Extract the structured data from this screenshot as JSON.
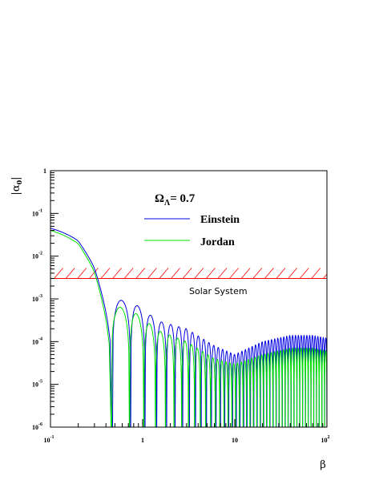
{
  "chart_data": {
    "type": "line",
    "ylabel_main": "|α",
    "ylabel_sub": "0",
    "ylabel_end": "|",
    "xlabel": "β",
    "x_scale": "log",
    "y_scale": "log",
    "xlim": [
      0.1,
      100
    ],
    "ylim": [
      1e-06,
      1
    ],
    "x_ticks": [
      {
        "value": 0.1,
        "base": "10",
        "exp": "-1"
      },
      {
        "value": 1,
        "base": "1",
        "exp": ""
      },
      {
        "value": 10,
        "base": "10",
        "exp": ""
      },
      {
        "value": 100,
        "base": "10",
        "exp": "2"
      }
    ],
    "y_ticks": [
      {
        "value": 1,
        "base": "1",
        "exp": ""
      },
      {
        "value": 0.1,
        "base": "10",
        "exp": "-1"
      },
      {
        "value": 0.01,
        "base": "10",
        "exp": "-2"
      },
      {
        "value": 0.001,
        "base": "10",
        "exp": "-3"
      },
      {
        "value": 0.0001,
        "base": "10",
        "exp": "-4"
      },
      {
        "value": 1e-05,
        "base": "10",
        "exp": "-5"
      },
      {
        "value": 1e-06,
        "base": "10",
        "exp": "-6"
      }
    ],
    "annotation": {
      "omega": "Ω",
      "lambda": "Λ",
      "text": "= 0.7"
    },
    "series": [
      {
        "name": "Einstein",
        "color": "#0000e0",
        "amplitude": [
          [
            0.1,
            0.045
          ],
          [
            0.2,
            0.03
          ],
          [
            0.3,
            0.012
          ],
          [
            0.5,
            0.001
          ],
          [
            0.8,
            0.0008
          ],
          [
            1.5,
            0.0003
          ],
          [
            3,
            0.0002
          ],
          [
            6,
            8e-05
          ],
          [
            10,
            5e-05
          ],
          [
            20,
            0.0001
          ],
          [
            40,
            0.00014
          ],
          [
            70,
            0.00014
          ],
          [
            100,
            0.00012
          ]
        ],
        "zeros": [
          0.47,
          0.74,
          1.06,
          1.42,
          1.82,
          2.25,
          2.72,
          3.22,
          3.75,
          4.32,
          4.93,
          5.58,
          6.27,
          7.0,
          7.78,
          8.6,
          9.47,
          10.4,
          11.4,
          12.5,
          13.6,
          14.8,
          16.1,
          17.5,
          19.0,
          20.6,
          22.3,
          24.1,
          26.1,
          28.2,
          30.4,
          32.8,
          35.3,
          38.0,
          40.9,
          44.0,
          47.3,
          50.8,
          54.5,
          58.5,
          62.7,
          67.2,
          72.0,
          77.1,
          82.5,
          88.3,
          94.4,
          100
        ]
      },
      {
        "name": "Jordan",
        "color": "#00e000",
        "amplitude": [
          [
            0.1,
            0.04
          ],
          [
            0.2,
            0.026
          ],
          [
            0.3,
            0.01
          ],
          [
            0.5,
            0.0007
          ],
          [
            0.8,
            0.0005
          ],
          [
            1.5,
            0.00018
          ],
          [
            3,
            0.0001
          ],
          [
            6,
            4e-05
          ],
          [
            10,
            3e-05
          ],
          [
            20,
            5e-05
          ],
          [
            40,
            7e-05
          ],
          [
            70,
            7e-05
          ],
          [
            100,
            6e-05
          ]
        ],
        "zeros": [
          0.46,
          0.72,
          1.03,
          1.38,
          1.77,
          2.19,
          2.65,
          3.14,
          3.66,
          4.22,
          4.82,
          5.46,
          6.14,
          6.86,
          7.63,
          8.44,
          9.3,
          10.2,
          11.2,
          12.3,
          13.4,
          14.6,
          15.9,
          17.3,
          18.8,
          20.4,
          22.1,
          23.9,
          25.9,
          28.0,
          30.2,
          32.6,
          35.1,
          37.8,
          40.7,
          43.8,
          47.1,
          50.6,
          54.3,
          58.3,
          62.5,
          67.0,
          71.8,
          76.9,
          82.3,
          88.1,
          94.2,
          100
        ]
      }
    ],
    "constraint": {
      "label": "Solar System",
      "value": 0.003,
      "color": "#ff0000",
      "hatched_side": "above"
    },
    "legend_position": "top-center",
    "grid": false
  }
}
